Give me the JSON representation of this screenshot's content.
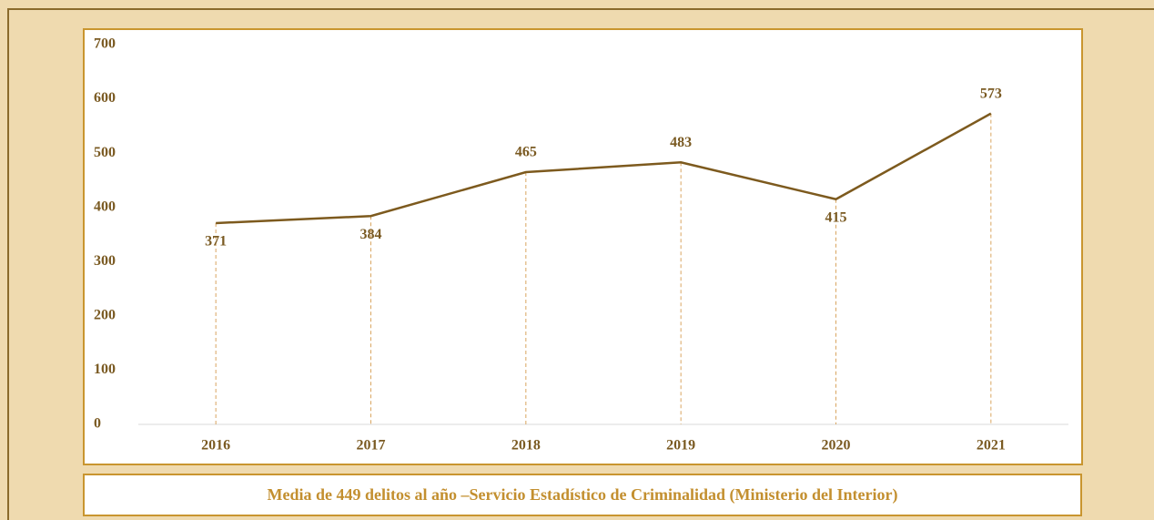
{
  "chart_data": {
    "type": "line",
    "categories": [
      "2016",
      "2017",
      "2018",
      "2019",
      "2020",
      "2021"
    ],
    "values": [
      371,
      384,
      465,
      483,
      415,
      573
    ],
    "color": "#7d5a1e",
    "ylim": [
      0,
      700
    ],
    "yticks": [
      0,
      100,
      200,
      300,
      400,
      500,
      600,
      700
    ],
    "grid": false,
    "caption": "Media de 449 delitos al año –Servicio Estadístico de Criminalidad (Ministerio del Interior)"
  }
}
